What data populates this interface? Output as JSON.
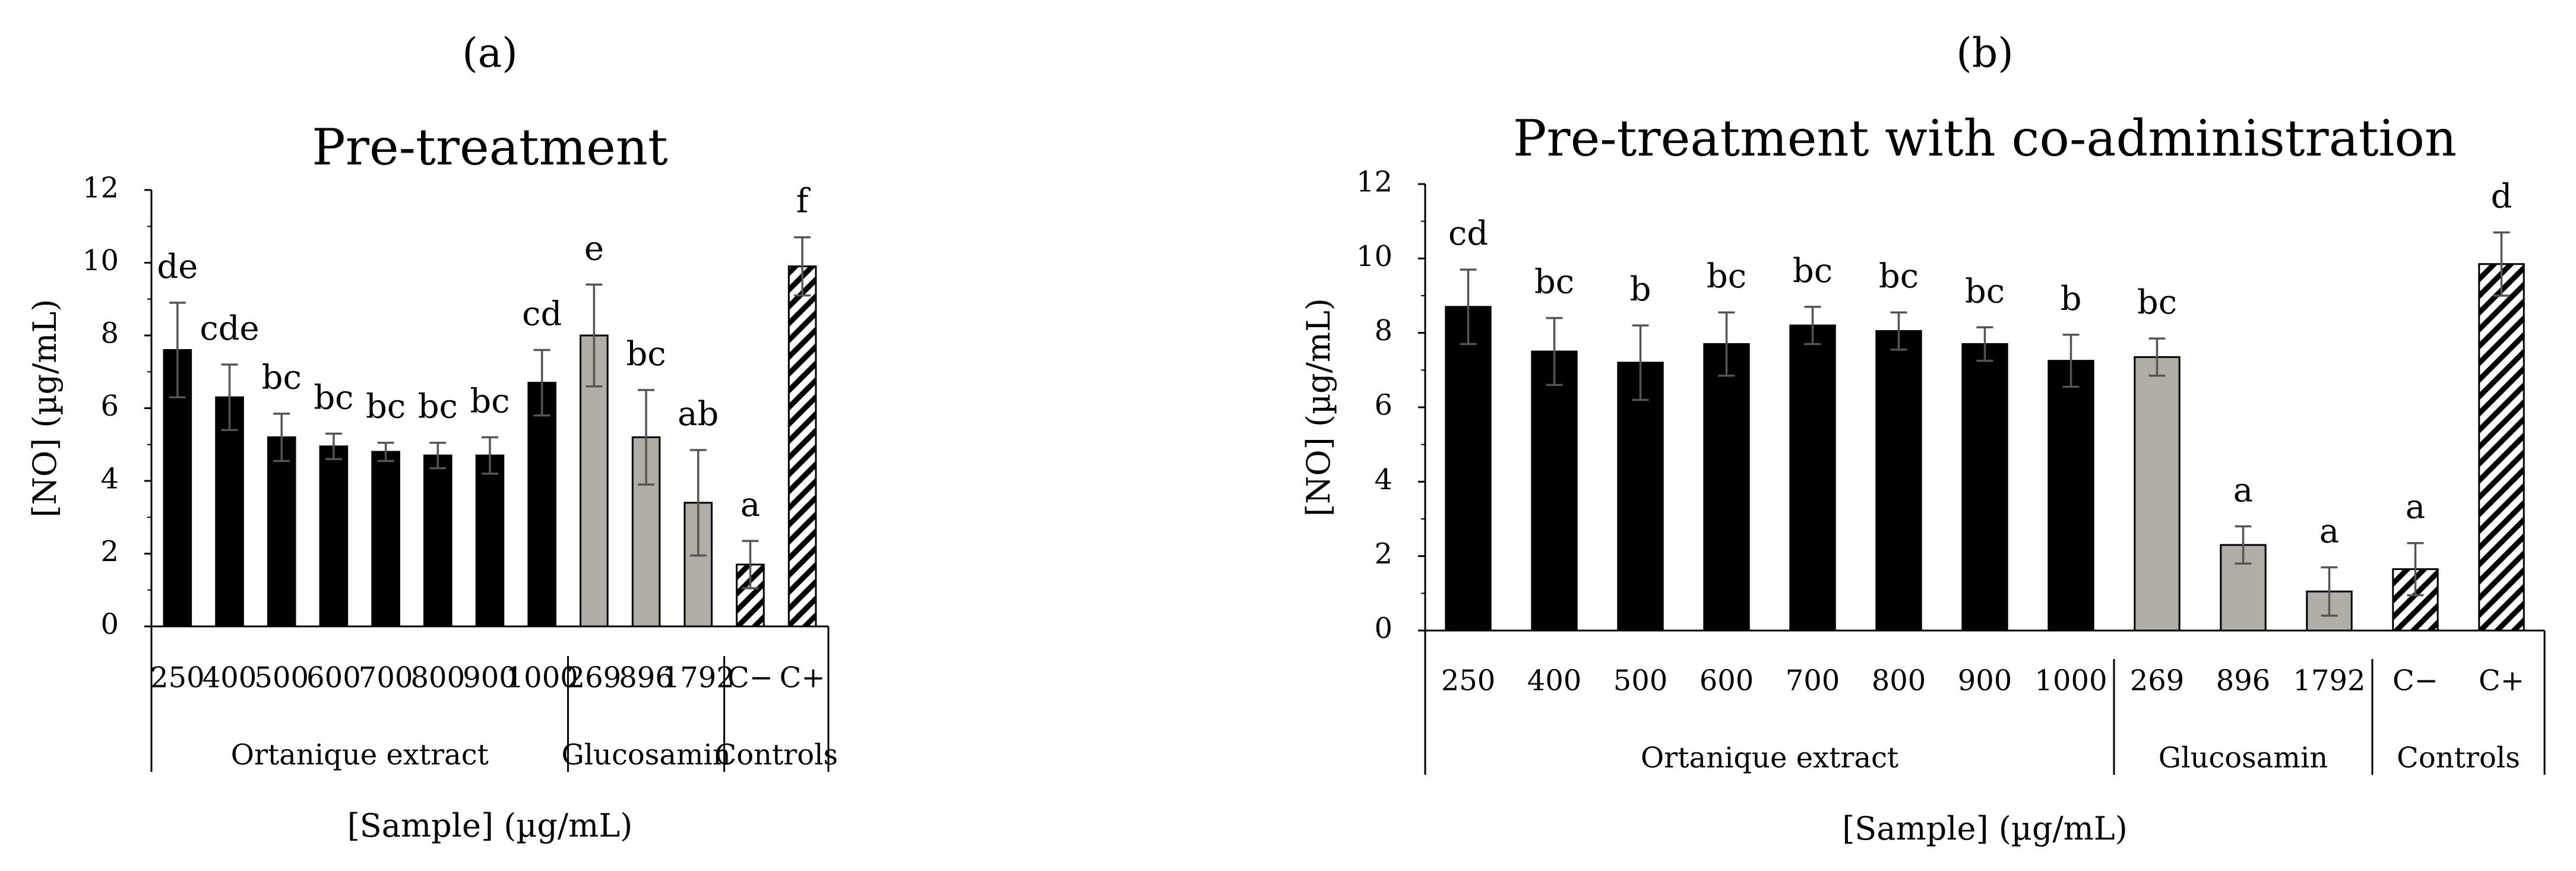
{
  "chart_data": [
    {
      "type": "bar",
      "panel_label": "(a)",
      "panel_letter": "a",
      "title": "Pre-treatment",
      "ylabel": "[NO] (µg/mL)",
      "xlabel": "[Sample] (µg/mL)",
      "ylim": [
        0,
        12
      ],
      "yticks": [
        "0",
        "2",
        "4",
        "6",
        "8",
        "10",
        "12"
      ],
      "categories": [
        "250",
        "400",
        "500",
        "600",
        "700",
        "800",
        "900",
        "1000",
        "269",
        "896",
        "1792",
        "C−",
        "C+"
      ],
      "values": [
        7.6,
        6.3,
        5.2,
        4.95,
        4.8,
        4.7,
        4.7,
        6.7,
        8.0,
        5.2,
        3.4,
        1.7,
        9.9
      ],
      "errors": [
        1.3,
        0.9,
        0.65,
        0.35,
        0.25,
        0.35,
        0.5,
        0.9,
        1.4,
        1.3,
        1.45,
        0.65,
        0.8
      ],
      "letters": [
        "de",
        "cde",
        "bc",
        "bc",
        "bc",
        "bc",
        "bc",
        "cd",
        "e",
        "bc",
        "ab",
        "a",
        "f"
      ],
      "fills": [
        "solid",
        "solid",
        "solid",
        "solid",
        "solid",
        "solid",
        "solid",
        "solid",
        "gray",
        "gray",
        "gray",
        "hatch",
        "hatch"
      ],
      "groups": [
        {
          "label": "Ortanique extract",
          "count": 8
        },
        {
          "label": "Glucosamin",
          "count": 3
        },
        {
          "label": "Controls",
          "count": 2
        }
      ]
    },
    {
      "type": "bar",
      "panel_label": "(b)",
      "panel_letter": "b",
      "title": "Pre-treatment with co-administration",
      "ylabel": "[NO] (µg/mL)",
      "xlabel": "[Sample] (µg/mL)",
      "ylim": [
        0,
        12
      ],
      "yticks": [
        "0",
        "2",
        "4",
        "6",
        "8",
        "10",
        "12"
      ],
      "categories": [
        "250",
        "400",
        "500",
        "600",
        "700",
        "800",
        "900",
        "1000",
        "269",
        "896",
        "1792",
        "C−",
        "C+"
      ],
      "values": [
        8.7,
        7.5,
        7.2,
        7.7,
        8.2,
        8.05,
        7.7,
        7.25,
        7.35,
        2.3,
        1.05,
        1.65,
        9.85
      ],
      "errors": [
        1.0,
        0.9,
        1.0,
        0.85,
        0.5,
        0.5,
        0.45,
        0.7,
        0.5,
        0.5,
        0.65,
        0.7,
        0.85
      ],
      "letters": [
        "cd",
        "bc",
        "b",
        "bc",
        "bc",
        "bc",
        "bc",
        "b",
        "bc",
        "a",
        "a",
        "a",
        "d"
      ],
      "fills": [
        "solid",
        "solid",
        "solid",
        "solid",
        "solid",
        "solid",
        "solid",
        "solid",
        "gray",
        "gray",
        "gray",
        "hatch",
        "hatch"
      ],
      "groups": [
        {
          "label": "Ortanique extract",
          "count": 8
        },
        {
          "label": "Glucosamin",
          "count": 3
        },
        {
          "label": "Controls",
          "count": 2
        }
      ]
    }
  ],
  "colors": {
    "solid": "#000000",
    "gray": "#b0aca6",
    "error_bar": "#555555",
    "axis": "#000000"
  }
}
